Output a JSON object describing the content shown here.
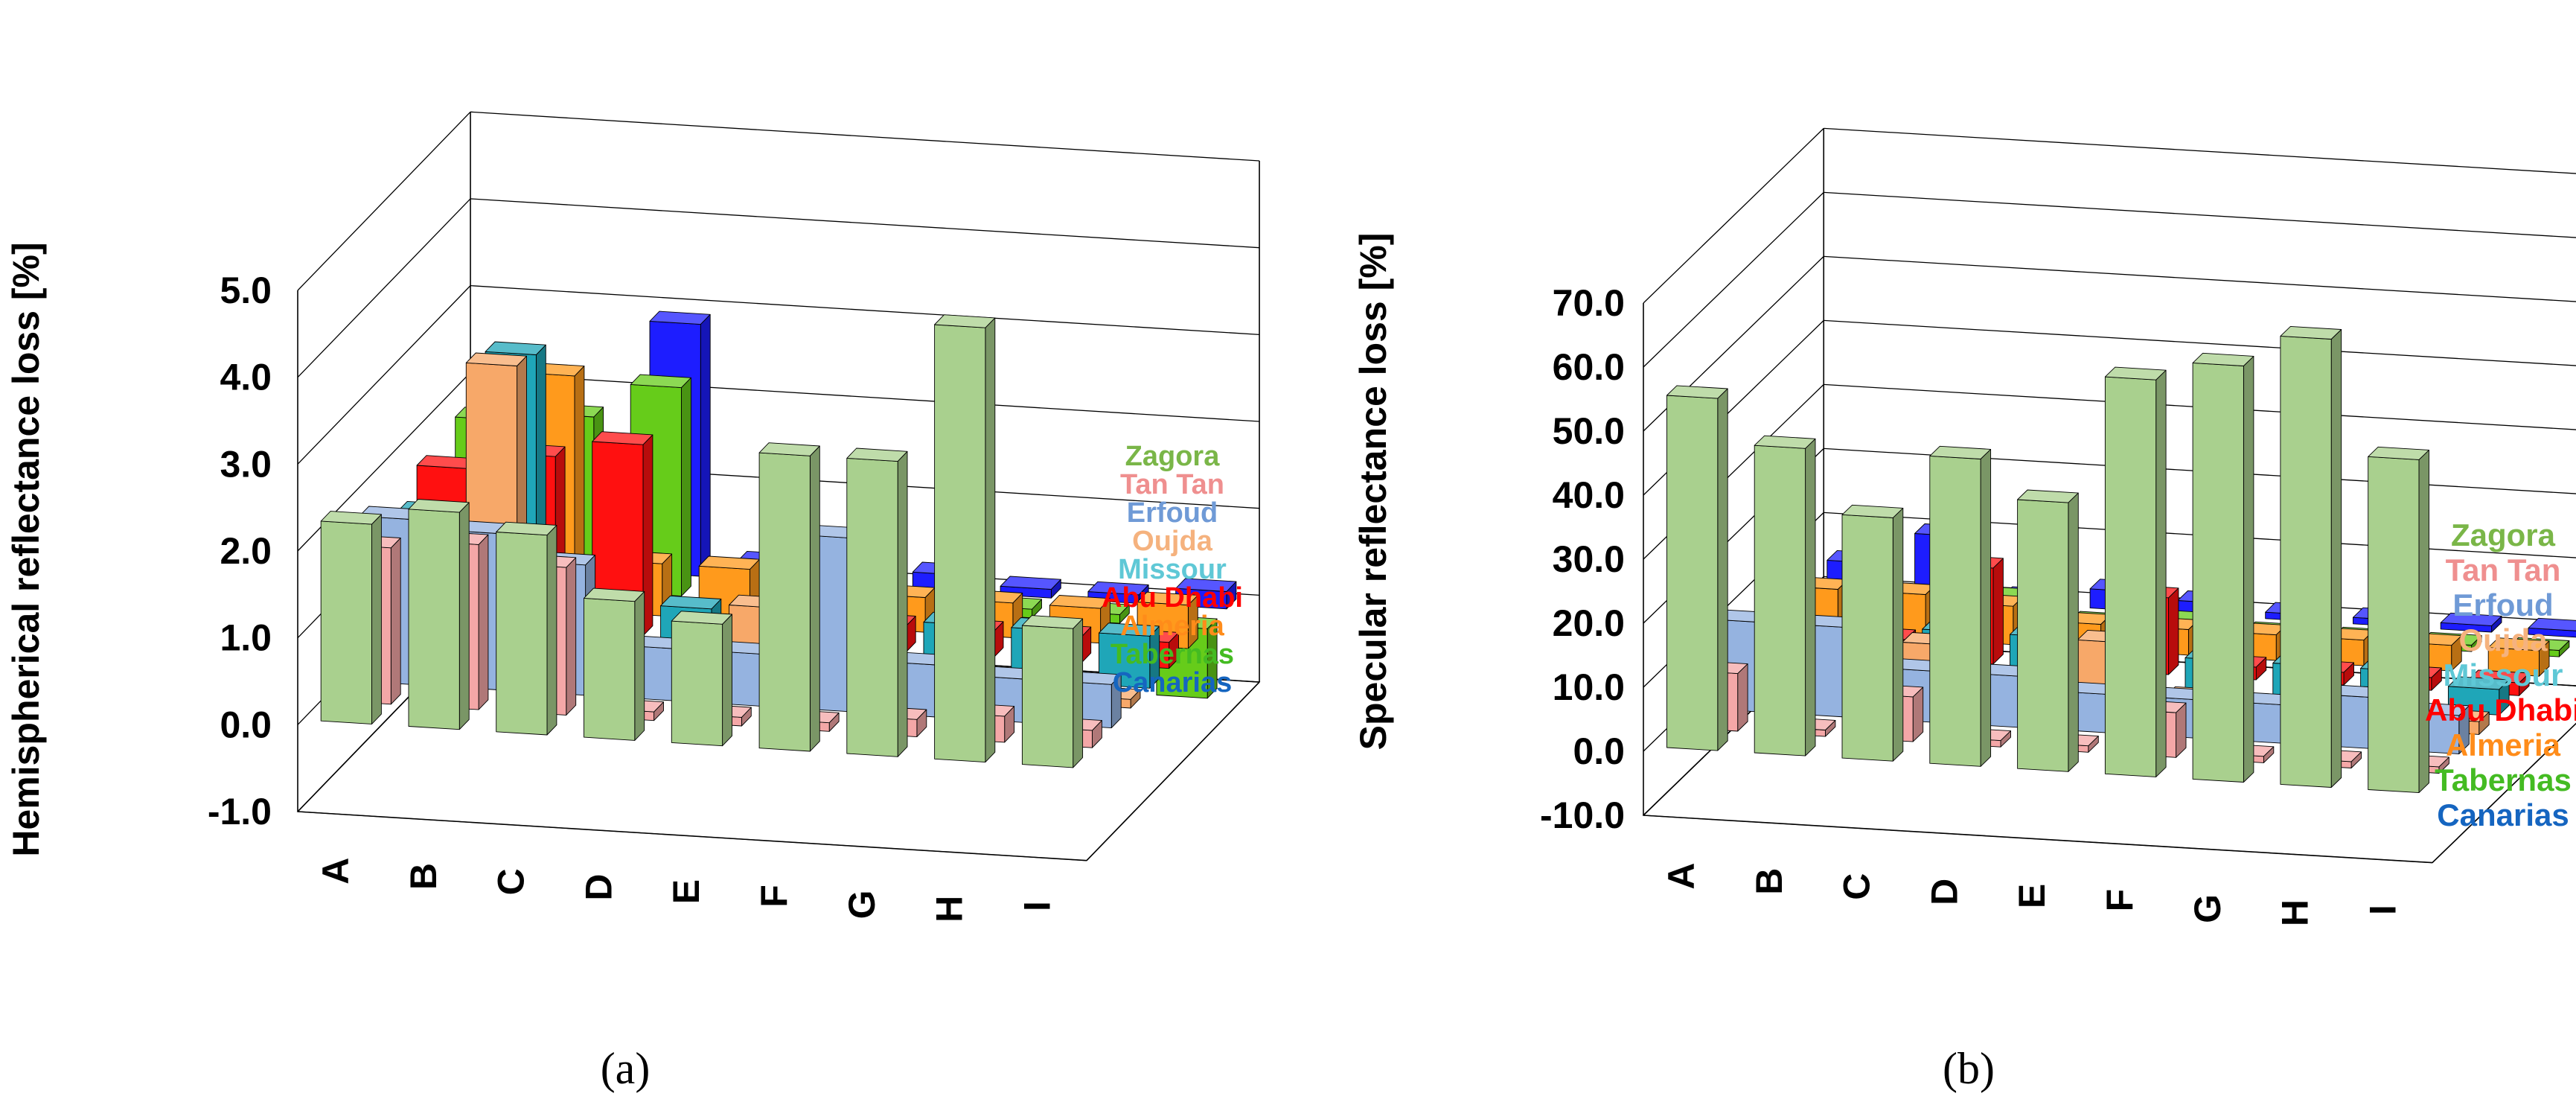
{
  "series_colors": {
    "Zagora": "#a9d08e",
    "Tan Tan": "#f4a7a7",
    "Erfoud": "#95b3e0",
    "Oujda": "#f7a869",
    "Missour": "#1fa6b8",
    "Abu Dhabi": "#ff1010",
    "Almeria": "#ff9a1c",
    "Tabernas": "#66cc1a",
    "Canarias": "#1d1dff"
  },
  "legend_colors": {
    "Zagora": "#7ab648",
    "Tan Tan": "#ef8f8f",
    "Erfoud": "#6f9ad6",
    "Oujda": "#f5b27e",
    "Missour": "#5fc8d6",
    "Abu Dhabi": "#ff0000",
    "Almeria": "#ff8c1a",
    "Tabernas": "#44bb22",
    "Canarias": "#1565c0"
  },
  "chart_data": [
    {
      "type": "bar",
      "panel_label": "a",
      "panel_text": "(a)",
      "ylabel": "Hemispherical reflectance loss [%]",
      "ylim": [
        -1.0,
        5.0
      ],
      "yticks": [
        "5.0",
        "4.0",
        "3.0",
        "2.0",
        "1.0",
        "0.0",
        "-1.0"
      ],
      "categories": [
        "A",
        "B",
        "C",
        "D",
        "E",
        "F",
        "G",
        "H",
        "I"
      ],
      "legend": [
        "Zagora",
        "Tan Tan",
        "Erfoud",
        "Oujda",
        "Missour",
        "Abu Dhabi",
        "Almeria",
        "Tabernas",
        "Canarias"
      ],
      "series": [
        {
          "name": "Zagora",
          "values": [
            2.3,
            2.5,
            2.3,
            1.6,
            1.4,
            3.4,
            3.4,
            5.0,
            1.6
          ]
        },
        {
          "name": "Tan Tan",
          "values": [
            1.8,
            1.9,
            1.7,
            0.1,
            0.1,
            0.1,
            0.2,
            0.3,
            0.2
          ]
        },
        {
          "name": "Erfoud",
          "values": [
            1.9,
            1.8,
            1.5,
            0.6,
            0.6,
            2.0,
            0.6,
            0.5,
            0.5
          ]
        },
        {
          "name": "Oujda",
          "values": [
            1.6,
            3.5,
            0.1,
            0.1,
            0.9,
            0.2,
            0.2,
            0.2,
            0.1
          ]
        },
        {
          "name": "Missour",
          "values": [
            1.5,
            3.4,
            0.1,
            0.6,
            0.1,
            0.6,
            0.6,
            0.6,
            0.6
          ]
        },
        {
          "name": "Abu Dhabi",
          "values": [
            1.8,
            2.0,
            2.2,
            0.1,
            0.3,
            0.3,
            0.3,
            0.3,
            0.3
          ]
        },
        {
          "name": "Almeria",
          "values": [
            1.4,
            2.7,
            0.6,
            0.6,
            0.3,
            0.4,
            0.4,
            0.4,
            0.5
          ]
        },
        {
          "name": "Tabernas",
          "values": [
            1.9,
            2.0,
            2.4,
            0.1,
            0.6,
            0.1,
            0.1,
            0.1,
            -0.8
          ]
        },
        {
          "name": "Canarias",
          "values": [
            1.3,
            1.0,
            2.9,
            0.2,
            0.3,
            0.2,
            0.1,
            0.1,
            0.2
          ]
        }
      ]
    },
    {
      "type": "bar",
      "panel_label": "b",
      "panel_text": "(b)",
      "ylabel": "Specular reflectance loss [%]",
      "ylim": [
        -10.0,
        70.0
      ],
      "yticks": [
        "70.0",
        "60.0",
        "50.0",
        "40.0",
        "30.0",
        "20.0",
        "10.0",
        "0.0",
        "-10.0"
      ],
      "categories": [
        "A",
        "B",
        "C",
        "D",
        "E",
        "F",
        "G",
        "H",
        "I"
      ],
      "legend": [
        "Zagora",
        "Tan Tan",
        "Erfoud",
        "Oujda",
        "Missour",
        "Abu Dhabi",
        "Almeria",
        "Tabernas",
        "Canarias"
      ],
      "series": [
        {
          "name": "Zagora",
          "values": [
            55,
            48,
            38,
            48,
            42,
            62,
            65,
            70,
            52
          ]
        },
        {
          "name": "Tan Tan",
          "values": [
            9,
            1,
            7,
            1,
            1,
            7,
            1,
            1,
            1
          ]
        },
        {
          "name": "Erfoud",
          "values": [
            14,
            14,
            8,
            8,
            6,
            6,
            6,
            8,
            6
          ]
        },
        {
          "name": "Oujda",
          "values": [
            3,
            2,
            9,
            3,
            11,
            3,
            2,
            3,
            2
          ]
        },
        {
          "name": "Missour",
          "values": [
            8,
            8,
            8,
            8,
            8,
            6,
            6,
            6,
            4
          ]
        },
        {
          "name": "Abu Dhabi",
          "values": [
            3,
            3,
            15,
            3,
            12,
            2,
            2,
            2,
            2
          ]
        },
        {
          "name": "Almeria",
          "values": [
            7,
            7,
            6,
            4,
            4,
            4,
            4,
            4,
            4
          ]
        },
        {
          "name": "Tabernas",
          "values": [
            2,
            2,
            4,
            1,
            2,
            1,
            1,
            1,
            1
          ]
        },
        {
          "name": "Canarias",
          "values": [
            5,
            10,
            1,
            3,
            2,
            1,
            1,
            1,
            1
          ]
        }
      ]
    }
  ]
}
